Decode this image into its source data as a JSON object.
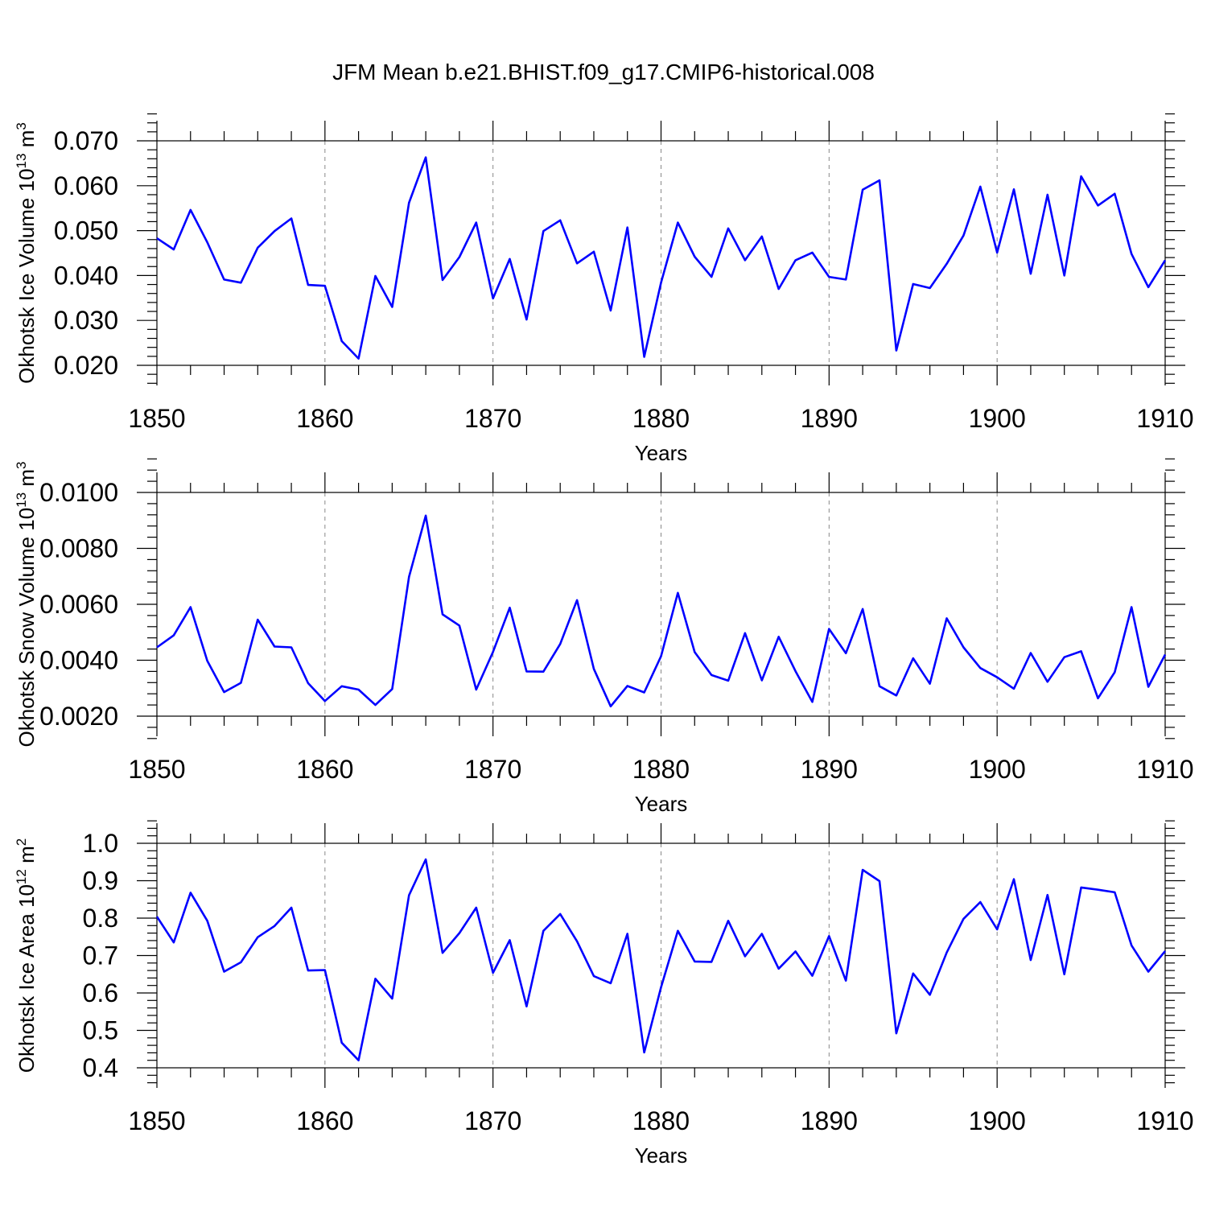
{
  "title": "JFM Mean b.e21.BHIST.f09_g17.CMIP6-historical.008",
  "chart_data": [
    {
      "type": "line",
      "name": "ice-volume",
      "ylabel_main": "Okhotsk Ice Volume 10",
      "ylabel_exp": "13",
      "ylabel_unit": " m",
      "ylabel_unit_exp": "3",
      "xlabel": "Years",
      "xlim": [
        1850,
        1910
      ],
      "ylim": [
        0.02,
        0.07
      ],
      "xticks": [
        1850,
        1860,
        1870,
        1880,
        1890,
        1900,
        1910
      ],
      "xtick_labels": [
        "1850",
        "1860",
        "1870",
        "1880",
        "1890",
        "1900",
        "1910"
      ],
      "yticks": [
        0.02,
        0.03,
        0.04,
        0.05,
        0.06,
        0.07
      ],
      "ytick_labels": [
        "0.020",
        "0.030",
        "0.040",
        "0.050",
        "0.060",
        "0.070"
      ],
      "grid_x": [
        1860,
        1870,
        1880,
        1890,
        1900
      ],
      "color": "#0000ff",
      "x": [
        1850,
        1851,
        1852,
        1853,
        1854,
        1855,
        1856,
        1857,
        1858,
        1859,
        1860,
        1861,
        1862,
        1863,
        1864,
        1865,
        1866,
        1867,
        1868,
        1869,
        1870,
        1871,
        1872,
        1873,
        1874,
        1875,
        1876,
        1877,
        1878,
        1879,
        1880,
        1881,
        1882,
        1883,
        1884,
        1885,
        1886,
        1887,
        1888,
        1889,
        1890,
        1891,
        1892,
        1893,
        1894,
        1895,
        1896,
        1897,
        1898,
        1899,
        1900,
        1901,
        1902,
        1903,
        1904,
        1905,
        1906,
        1907,
        1908,
        1909,
        1910
      ],
      "values": [
        0.0483,
        0.0458,
        0.0546,
        0.0474,
        0.0391,
        0.0384,
        0.0462,
        0.0499,
        0.0527,
        0.0379,
        0.0377,
        0.0254,
        0.0215,
        0.0399,
        0.033,
        0.0562,
        0.0663,
        0.039,
        0.0441,
        0.0518,
        0.0349,
        0.0437,
        0.0302,
        0.0499,
        0.0523,
        0.0427,
        0.0453,
        0.0322,
        0.0507,
        0.0219,
        0.0384,
        0.0518,
        0.0442,
        0.0397,
        0.0505,
        0.0434,
        0.0487,
        0.037,
        0.0434,
        0.0451,
        0.0397,
        0.0391,
        0.0591,
        0.0612,
        0.0233,
        0.0381,
        0.0372,
        0.0426,
        0.0489,
        0.0598,
        0.0451,
        0.0592,
        0.0404,
        0.058,
        0.04,
        0.0621,
        0.0556,
        0.0582,
        0.0448,
        0.0374,
        0.0434
      ]
    },
    {
      "type": "line",
      "name": "snow-volume",
      "ylabel_main": "Okhotsk Snow Volume 10",
      "ylabel_exp": "13",
      "ylabel_unit": " m",
      "ylabel_unit_exp": "3",
      "xlabel": "Years",
      "xlim": [
        1850,
        1910
      ],
      "ylim": [
        0.002,
        0.01
      ],
      "xticks": [
        1850,
        1860,
        1870,
        1880,
        1890,
        1900,
        1910
      ],
      "xtick_labels": [
        "1850",
        "1860",
        "1870",
        "1880",
        "1890",
        "1900",
        "1910"
      ],
      "yticks": [
        0.002,
        0.004,
        0.006,
        0.008,
        0.01
      ],
      "ytick_labels": [
        "0.0020",
        "0.0040",
        "0.0060",
        "0.0080",
        "0.0100"
      ],
      "grid_x": [
        1860,
        1870,
        1880,
        1890,
        1900
      ],
      "color": "#0000ff",
      "x": [
        1850,
        1851,
        1852,
        1853,
        1854,
        1855,
        1856,
        1857,
        1858,
        1859,
        1860,
        1861,
        1862,
        1863,
        1864,
        1865,
        1866,
        1867,
        1868,
        1869,
        1870,
        1871,
        1872,
        1873,
        1874,
        1875,
        1876,
        1877,
        1878,
        1879,
        1880,
        1881,
        1882,
        1883,
        1884,
        1885,
        1886,
        1887,
        1888,
        1889,
        1890,
        1891,
        1892,
        1893,
        1894,
        1895,
        1896,
        1897,
        1898,
        1899,
        1900,
        1901,
        1902,
        1903,
        1904,
        1905,
        1906,
        1907,
        1908,
        1909,
        1910
      ],
      "values": [
        0.00446,
        0.00489,
        0.0059,
        0.00398,
        0.00286,
        0.00319,
        0.00545,
        0.00449,
        0.00446,
        0.00318,
        0.00254,
        0.00307,
        0.00295,
        0.0024,
        0.00297,
        0.00698,
        0.00917,
        0.00564,
        0.00524,
        0.00295,
        0.0043,
        0.00588,
        0.0036,
        0.00359,
        0.00458,
        0.00615,
        0.00369,
        0.00235,
        0.00308,
        0.00285,
        0.00414,
        0.00641,
        0.00429,
        0.00347,
        0.00327,
        0.00497,
        0.00328,
        0.00484,
        0.00361,
        0.00251,
        0.00512,
        0.00425,
        0.00583,
        0.00307,
        0.00274,
        0.00407,
        0.00316,
        0.0055,
        0.00446,
        0.00372,
        0.00339,
        0.00298,
        0.00426,
        0.00323,
        0.00411,
        0.00432,
        0.00264,
        0.00357,
        0.0059,
        0.00305,
        0.0042
      ]
    },
    {
      "type": "line",
      "name": "ice-area",
      "ylabel_main": "Okhotsk Ice Area 10",
      "ylabel_exp": "12",
      "ylabel_unit": " m",
      "ylabel_unit_exp": "2",
      "xlabel": "Years",
      "xlim": [
        1850,
        1910
      ],
      "ylim": [
        0.4,
        1.0
      ],
      "xticks": [
        1850,
        1860,
        1870,
        1880,
        1890,
        1900,
        1910
      ],
      "xtick_labels": [
        "1850",
        "1860",
        "1870",
        "1880",
        "1890",
        "1900",
        "1910"
      ],
      "yticks": [
        0.4,
        0.5,
        0.6,
        0.7,
        0.8,
        0.9,
        1.0
      ],
      "ytick_labels": [
        "0.4",
        "0.5",
        "0.6",
        "0.7",
        "0.8",
        "0.9",
        "1.0"
      ],
      "grid_x": [
        1860,
        1870,
        1880,
        1890,
        1900
      ],
      "color": "#0000ff",
      "x": [
        1850,
        1851,
        1852,
        1853,
        1854,
        1855,
        1856,
        1857,
        1858,
        1859,
        1860,
        1861,
        1862,
        1863,
        1864,
        1865,
        1866,
        1867,
        1868,
        1869,
        1870,
        1871,
        1872,
        1873,
        1874,
        1875,
        1876,
        1877,
        1878,
        1879,
        1880,
        1881,
        1882,
        1883,
        1884,
        1885,
        1886,
        1887,
        1888,
        1889,
        1890,
        1891,
        1892,
        1893,
        1894,
        1895,
        1896,
        1897,
        1898,
        1899,
        1900,
        1901,
        1902,
        1903,
        1904,
        1905,
        1906,
        1907,
        1908,
        1909,
        1910
      ],
      "values": [
        0.804,
        0.735,
        0.868,
        0.793,
        0.657,
        0.682,
        0.749,
        0.779,
        0.828,
        0.66,
        0.661,
        0.467,
        0.42,
        0.638,
        0.585,
        0.861,
        0.957,
        0.707,
        0.76,
        0.828,
        0.654,
        0.741,
        0.564,
        0.766,
        0.811,
        0.738,
        0.645,
        0.626,
        0.758,
        0.441,
        0.615,
        0.766,
        0.684,
        0.683,
        0.793,
        0.698,
        0.758,
        0.665,
        0.711,
        0.646,
        0.752,
        0.633,
        0.929,
        0.899,
        0.492,
        0.652,
        0.595,
        0.708,
        0.798,
        0.843,
        0.77,
        0.904,
        0.688,
        0.862,
        0.65,
        0.882,
        0.876,
        0.869,
        0.727,
        0.657,
        0.712
      ]
    }
  ]
}
